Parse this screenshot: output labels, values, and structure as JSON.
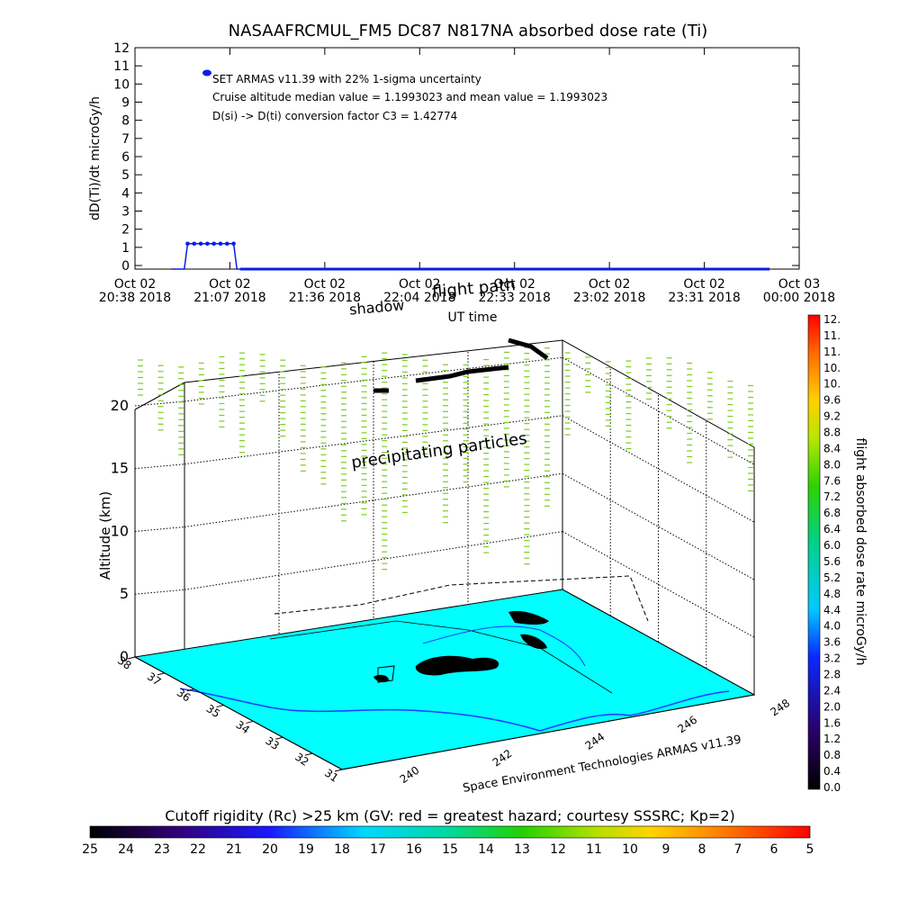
{
  "top_chart": {
    "title": "NASAAFRCMUL_FM5 DC87 N817NA absorbed dose rate (Ti)",
    "ylabel": "dD(Ti)/dt microGy/h",
    "xlabel": "UT time",
    "y_ticks": [
      "0",
      "1",
      "2",
      "3",
      "4",
      "5",
      "6",
      "7",
      "8",
      "9",
      "10",
      "11",
      "12"
    ],
    "x_ticks": [
      {
        "line1": "Oct 02",
        "line2": "20:38 2018"
      },
      {
        "line1": "Oct 02",
        "line2": "21:07 2018"
      },
      {
        "line1": "Oct 02",
        "line2": "21:36 2018"
      },
      {
        "line1": "Oct 02",
        "line2": "22:04 2018"
      },
      {
        "line1": "Oct 02",
        "line2": "22:33 2018"
      },
      {
        "line1": "Oct 02",
        "line2": "23:02 2018"
      },
      {
        "line1": "Oct 02",
        "line2": "23:31 2018"
      },
      {
        "line1": "Oct 03",
        "line2": "00:00 2018"
      }
    ],
    "legend_line1": "SET ARMAS v11.39 with 22% 1-sigma uncertainty",
    "legend_line2": "Cruise altitude median value = 1.1993023 and mean value = 1.1993023",
    "legend_line3": "D(si) -> D(ti) conversion factor C3 = 1.42774",
    "series_color": "#0a1ee6"
  },
  "chart_data": {
    "type": "line",
    "title": "NASAAFRCMUL_FM5 DC87 N817NA absorbed dose rate (Ti)",
    "xlabel": "UT time",
    "ylabel": "dD(Ti)/dt microGy/h",
    "x_unit": "minutes after 20:38 UT, Oct 02 2018",
    "ylim": [
      0,
      12
    ],
    "xlim": [
      0,
      202
    ],
    "series": [
      {
        "name": "SET ARMAS v11.39",
        "x": [
          11,
          15,
          16,
          18,
          20,
          22,
          24,
          26,
          28,
          30,
          31,
          32,
          35,
          40,
          60,
          90,
          120,
          150,
          180,
          193
        ],
        "values": [
          -0.2,
          -0.2,
          1.2,
          1.2,
          1.2,
          1.2,
          1.2,
          1.2,
          1.2,
          1.2,
          -0.2,
          -0.2,
          -0.2,
          -0.2,
          -0.2,
          -0.2,
          -0.2,
          -0.2,
          -0.2,
          -0.2
        ]
      }
    ]
  },
  "map3d": {
    "flight_path_label": "flight path",
    "shadow_label": "shadow",
    "precip_label": "precipitating particles",
    "alt_label": "Altitude (km)",
    "alt_ticks": [
      "0",
      "5",
      "10",
      "15",
      "20"
    ],
    "lat_ticks": [
      "38",
      "37",
      "36",
      "35",
      "34",
      "33",
      "32",
      "31"
    ],
    "lon_ticks": [
      "240",
      "242",
      "244",
      "246",
      "248"
    ],
    "credit": "Space Environment Technologies ARMAS v11.39",
    "ocean_color": "#00ffff",
    "precip_color": "#7ccd1c"
  },
  "right_colorbar": {
    "label": "flight absorbed dose rate microGy/h",
    "ticks": [
      "0.0",
      "0.4",
      "0.8",
      "1.2",
      "1.6",
      "2.0",
      "2.4",
      "2.8",
      "3.2",
      "3.6",
      "4.0",
      "4.4",
      "4.8",
      "5.2",
      "5.6",
      "6.0",
      "6.4",
      "6.8",
      "7.2",
      "7.6",
      "8.0",
      "8.4",
      "8.8",
      "9.2",
      "9.6",
      "10.",
      "10.",
      "11.",
      "11.",
      "12."
    ]
  },
  "bottom_colorbar": {
    "label": "Cutoff rigidity (Rc) >25 km (GV: red = greatest hazard; courtesy SSSRC; Kp=2)",
    "ticks": [
      "25",
      "24",
      "23",
      "22",
      "21",
      "20",
      "19",
      "18",
      "17",
      "16",
      "15",
      "14",
      "13",
      "12",
      "11",
      "10",
      "9",
      "8",
      "7",
      "6",
      "5"
    ]
  }
}
